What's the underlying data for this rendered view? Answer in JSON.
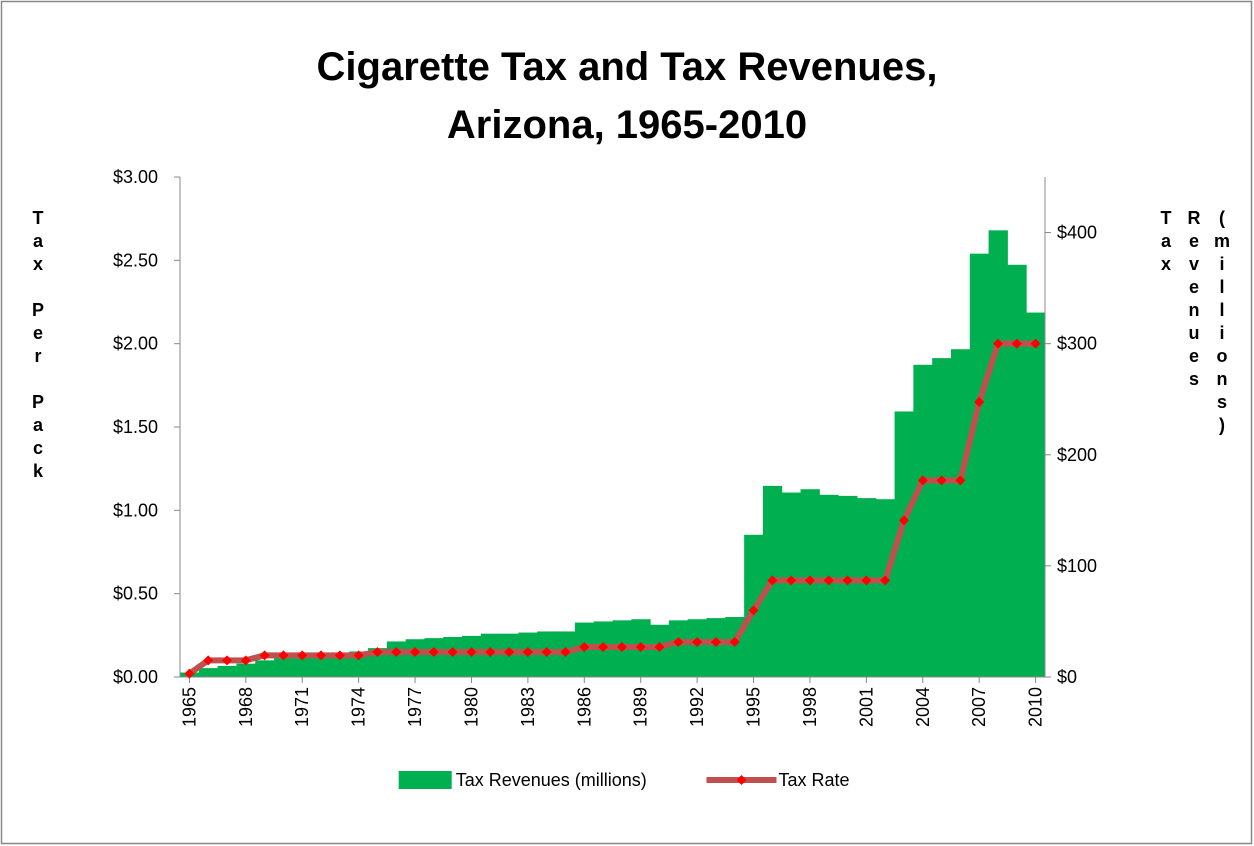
{
  "chart_data": {
    "type": "combo",
    "title": "Cigarette Tax and Tax Revenues, Arizona, 1965-2010",
    "y_label": "Tax Per Pack",
    "y2_label": "Tax Revenues (millions)",
    "x": [
      1965,
      1966,
      1967,
      1968,
      1969,
      1970,
      1971,
      1972,
      1973,
      1974,
      1975,
      1976,
      1977,
      1978,
      1979,
      1980,
      1981,
      1982,
      1983,
      1984,
      1985,
      1986,
      1987,
      1988,
      1989,
      1990,
      1991,
      1992,
      1993,
      1994,
      1995,
      1996,
      1997,
      1998,
      1999,
      2000,
      2001,
      2002,
      2003,
      2004,
      2005,
      2006,
      2007,
      2008,
      2009,
      2010
    ],
    "xlim": [
      1964.5,
      2010.5
    ],
    "xticks": [
      1965,
      1968,
      1971,
      1974,
      1977,
      1980,
      1983,
      1986,
      1989,
      1992,
      1995,
      1998,
      2001,
      2004,
      2007,
      2010
    ],
    "ylim": [
      0,
      3
    ],
    "yticks": [
      {
        "value": 0,
        "label": "$0.00"
      },
      {
        "value": 0.5,
        "label": "$0.50"
      },
      {
        "value": 1,
        "label": "$1.00"
      },
      {
        "value": 1.5,
        "label": "$1.50"
      },
      {
        "value": 2,
        "label": "$2.00"
      },
      {
        "value": 2.5,
        "label": "$2.50"
      },
      {
        "value": 3,
        "label": "$3.00"
      }
    ],
    "y2lim": [
      0,
      450
    ],
    "y2ticks": [
      {
        "value": 0,
        "label": "$0"
      },
      {
        "value": 100,
        "label": "$100"
      },
      {
        "value": 200,
        "label": "$200"
      },
      {
        "value": 300,
        "label": "$300"
      },
      {
        "value": 400,
        "label": "$400"
      }
    ],
    "legend": "bottom",
    "series": [
      {
        "name": "Tax Revenues (millions)",
        "type": "bar",
        "axis": "y2",
        "color": "#00b050",
        "values": [
          4,
          8,
          10,
          12,
          15,
          17,
          18,
          20,
          21,
          23,
          26,
          32,
          34,
          35,
          36,
          37,
          39,
          39,
          40,
          41,
          41,
          49,
          50,
          51,
          52,
          47,
          51,
          52,
          53,
          54,
          128,
          172,
          166,
          169,
          164,
          163,
          161,
          160,
          239,
          281,
          287,
          295,
          381,
          402,
          371,
          328
        ]
      },
      {
        "name": "Tax Rate",
        "type": "line",
        "color": "#c0504d",
        "marker_color": "#ff0000",
        "values": [
          0.02,
          0.1,
          0.1,
          0.1,
          0.13,
          0.13,
          0.13,
          0.13,
          0.13,
          0.13,
          0.15,
          0.15,
          0.15,
          0.15,
          0.15,
          0.15,
          0.15,
          0.15,
          0.15,
          0.15,
          0.15,
          0.18,
          0.18,
          0.18,
          0.18,
          0.18,
          0.21,
          0.21,
          0.21,
          0.21,
          0.4,
          0.58,
          0.58,
          0.58,
          0.58,
          0.58,
          0.58,
          0.58,
          0.94,
          1.18,
          1.18,
          1.18,
          1.65,
          2,
          2,
          2
        ]
      }
    ]
  }
}
